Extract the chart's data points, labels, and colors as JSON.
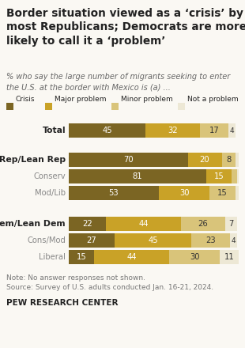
{
  "title": "Border situation viewed as a ‘crisis’ by\nmost Republicans; Democrats are more\nlikely to call it a ‘problem’",
  "subtitle": "% who say the large number of migrants seeking to enter\nthe U.S. at the border with Mexico is (a) ...",
  "categories": [
    "Total",
    null,
    "Rep/Lean Rep",
    "Conserv",
    "Mod/Lib",
    null,
    "Dem/Lean Dem",
    "Cons/Mod",
    "Liberal"
  ],
  "bold_rows": [
    0,
    2,
    6
  ],
  "data": [
    [
      45,
      32,
      17,
      4
    ],
    null,
    [
      70,
      20,
      8,
      2
    ],
    [
      81,
      15,
      3,
      1
    ],
    [
      53,
      30,
      15,
      2
    ],
    null,
    [
      22,
      44,
      26,
      7
    ],
    [
      27,
      45,
      23,
      4
    ],
    [
      15,
      44,
      30,
      11
    ]
  ],
  "colors": [
    "#7b6523",
    "#c9a227",
    "#d9c47a",
    "#ede8d5"
  ],
  "legend_labels": [
    "Crisis",
    "Major problem",
    "Minor problem",
    "Not a problem"
  ],
  "note": "Note: No answer responses not shown.",
  "source": "Source: Survey of U.S. adults conducted Jan. 16-21, 2024.",
  "branding": "PEW RESEARCH CENTER",
  "bg_color": "#faf8f3",
  "text_color_dark": "#222222",
  "text_color_gray": "#888888",
  "bar_text_light": "#ffffff",
  "bar_text_dark": "#333333"
}
